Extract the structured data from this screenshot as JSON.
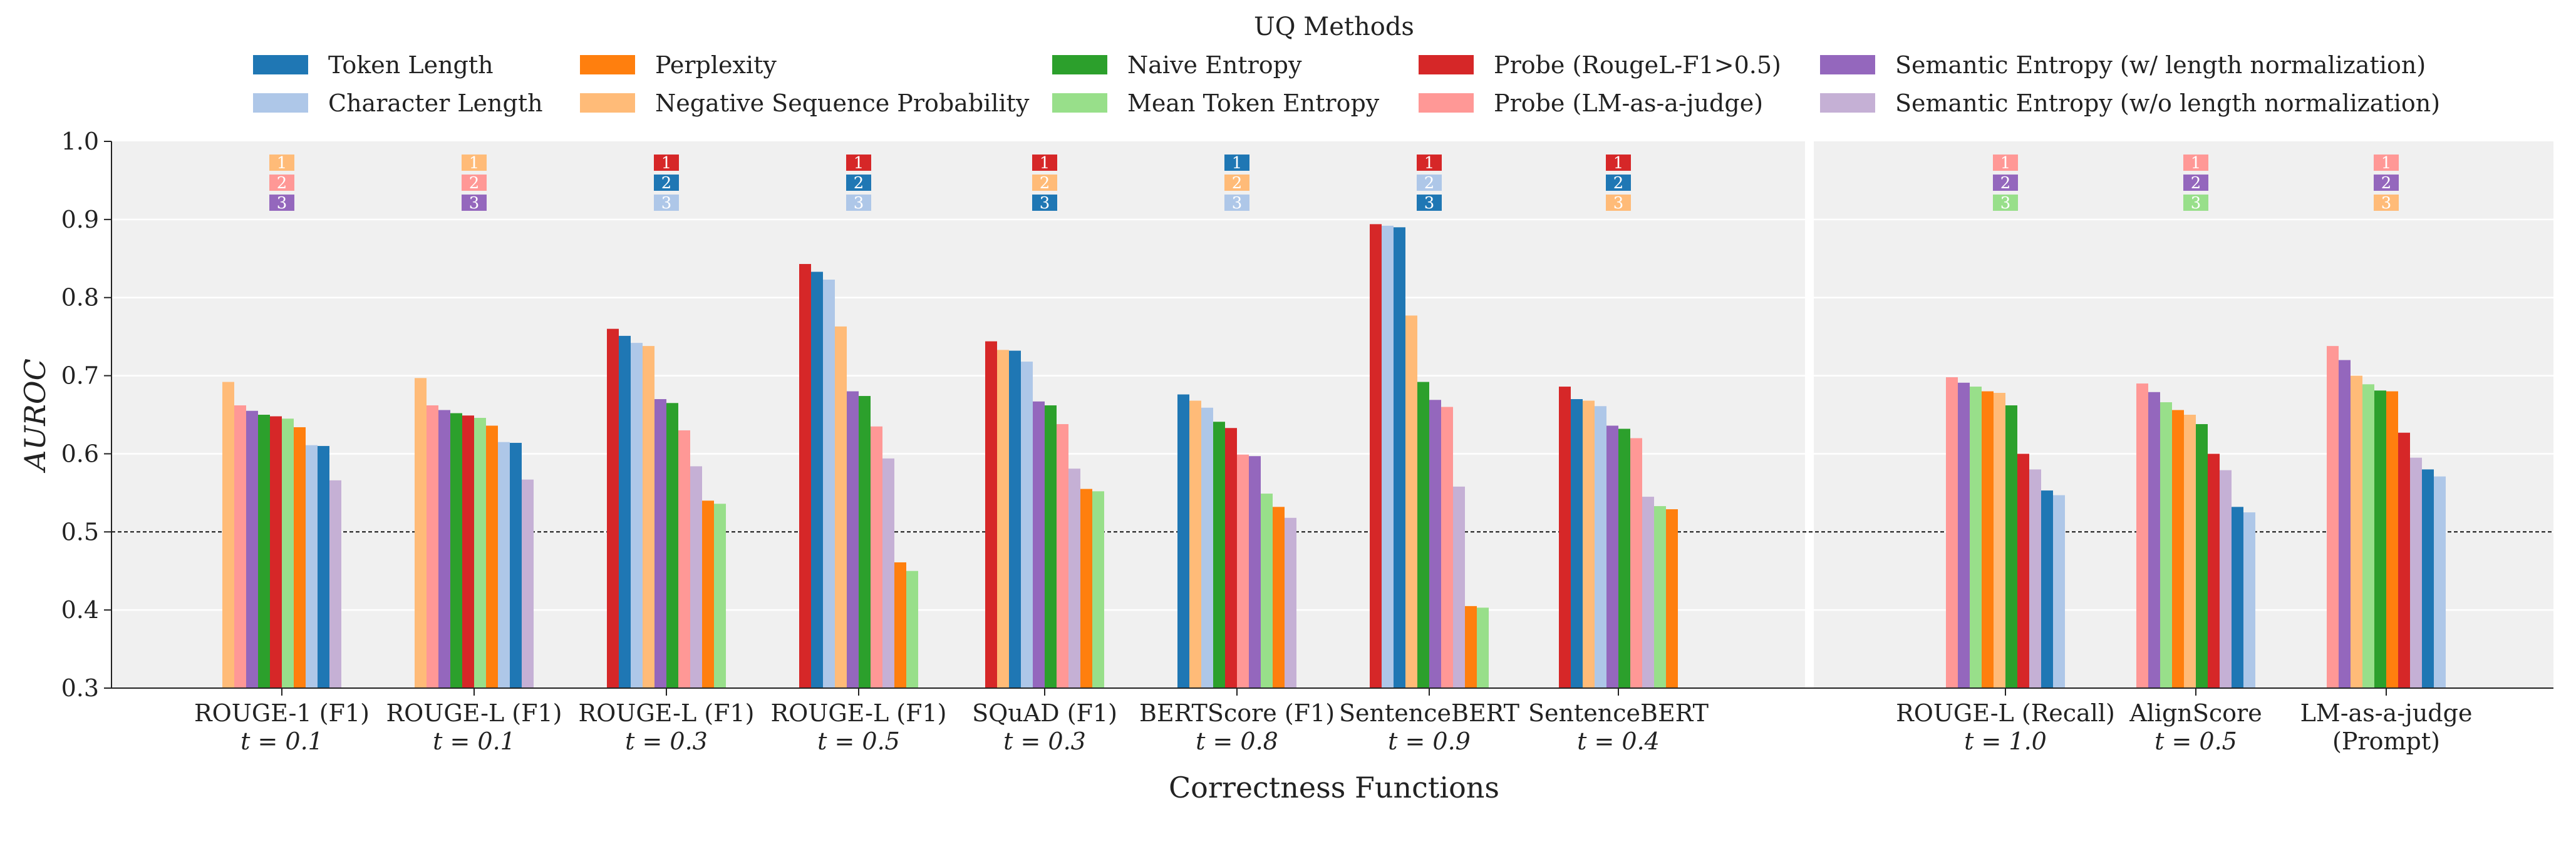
{
  "chart_data": {
    "type": "bar",
    "legend_title": "UQ Methods",
    "xlabel": "Correctness Functions",
    "ylabel": "AUROC",
    "ylim": [
      0.3,
      1.0
    ],
    "yticks": [
      "0.3",
      "0.4",
      "0.5",
      "0.6",
      "0.7",
      "0.8",
      "0.9",
      "1.0"
    ],
    "reference_line": 0.5,
    "grid": true,
    "legend_position": "top",
    "colors": {
      "Token Length": "#1f77b4",
      "Character Length": "#aec7e8",
      "Perplexity": "#ff7f0e",
      "Negative Sequence Probability": "#ffbb78",
      "Naive Entropy": "#2ca02c",
      "Mean Token Entropy": "#98df8a",
      "Probe (RougeL-F1>0.5)": "#d62728",
      "Probe (LM-as-a-judge)": "#ff9896",
      "Semantic Entropy (w/ length normalization)": "#9467bd",
      "Semantic Entropy (w/o length normalization)": "#c5b0d5"
    },
    "legend": [
      [
        "Token Length",
        "Character Length"
      ],
      [
        "Perplexity",
        "Negative Sequence Probability"
      ],
      [
        "Naive Entropy",
        "Mean Token Entropy"
      ],
      [
        "Probe (RougeL-F1>0.5)",
        "Probe (LM-as-a-judge)"
      ],
      [
        "Semantic Entropy (w/ length normalization)",
        "Semantic Entropy (w/o length normalization)"
      ]
    ],
    "groups": [
      {
        "line1": "ROUGE-1 (F1)",
        "line2": "t = 0.1",
        "ranks": [
          "Negative Sequence Probability",
          "Probe (LM-as-a-judge)",
          "Semantic Entropy (w/ length normalization)"
        ],
        "bars": [
          [
            "Negative Sequence Probability",
            0.692
          ],
          [
            "Probe (LM-as-a-judge)",
            0.662
          ],
          [
            "Semantic Entropy (w/ length normalization)",
            0.655
          ],
          [
            "Naive Entropy",
            0.65
          ],
          [
            "Probe (RougeL-F1>0.5)",
            0.648
          ],
          [
            "Mean Token Entropy",
            0.645
          ],
          [
            "Perplexity",
            0.634
          ],
          [
            "Character Length",
            0.611
          ],
          [
            "Token Length",
            0.61
          ],
          [
            "Semantic Entropy (w/o length normalization)",
            0.566
          ]
        ]
      },
      {
        "line1": "ROUGE-L (F1)",
        "line2": "t = 0.1",
        "ranks": [
          "Negative Sequence Probability",
          "Probe (LM-as-a-judge)",
          "Semantic Entropy (w/ length normalization)"
        ],
        "bars": [
          [
            "Negative Sequence Probability",
            0.697
          ],
          [
            "Probe (LM-as-a-judge)",
            0.662
          ],
          [
            "Semantic Entropy (w/ length normalization)",
            0.656
          ],
          [
            "Naive Entropy",
            0.652
          ],
          [
            "Probe (RougeL-F1>0.5)",
            0.649
          ],
          [
            "Mean Token Entropy",
            0.646
          ],
          [
            "Perplexity",
            0.636
          ],
          [
            "Character Length",
            0.615
          ],
          [
            "Token Length",
            0.614
          ],
          [
            "Semantic Entropy (w/o length normalization)",
            0.567
          ]
        ]
      },
      {
        "line1": "ROUGE-L (F1)",
        "line2": "t = 0.3",
        "ranks": [
          "Probe (RougeL-F1>0.5)",
          "Token Length",
          "Character Length"
        ],
        "bars": [
          [
            "Probe (RougeL-F1>0.5)",
            0.76
          ],
          [
            "Token Length",
            0.751
          ],
          [
            "Character Length",
            0.742
          ],
          [
            "Negative Sequence Probability",
            0.738
          ],
          [
            "Semantic Entropy (w/ length normalization)",
            0.67
          ],
          [
            "Naive Entropy",
            0.665
          ],
          [
            "Probe (LM-as-a-judge)",
            0.63
          ],
          [
            "Semantic Entropy (w/o length normalization)",
            0.584
          ],
          [
            "Perplexity",
            0.54
          ],
          [
            "Mean Token Entropy",
            0.536
          ]
        ]
      },
      {
        "line1": "ROUGE-L (F1)",
        "line2": "t = 0.5",
        "ranks": [
          "Probe (RougeL-F1>0.5)",
          "Token Length",
          "Character Length"
        ],
        "bars": [
          [
            "Probe (RougeL-F1>0.5)",
            0.843
          ],
          [
            "Token Length",
            0.833
          ],
          [
            "Character Length",
            0.823
          ],
          [
            "Negative Sequence Probability",
            0.763
          ],
          [
            "Semantic Entropy (w/ length normalization)",
            0.68
          ],
          [
            "Naive Entropy",
            0.674
          ],
          [
            "Probe (LM-as-a-judge)",
            0.635
          ],
          [
            "Semantic Entropy (w/o length normalization)",
            0.594
          ],
          [
            "Perplexity",
            0.461
          ],
          [
            "Mean Token Entropy",
            0.45
          ]
        ]
      },
      {
        "line1": "SQuAD (F1)",
        "line2": "t = 0.3",
        "ranks": [
          "Probe (RougeL-F1>0.5)",
          "Negative Sequence Probability",
          "Token Length"
        ],
        "bars": [
          [
            "Probe (RougeL-F1>0.5)",
            0.744
          ],
          [
            "Negative Sequence Probability",
            0.733
          ],
          [
            "Token Length",
            0.732
          ],
          [
            "Character Length",
            0.718
          ],
          [
            "Semantic Entropy (w/ length normalization)",
            0.667
          ],
          [
            "Naive Entropy",
            0.662
          ],
          [
            "Probe (LM-as-a-judge)",
            0.638
          ],
          [
            "Semantic Entropy (w/o length normalization)",
            0.581
          ],
          [
            "Perplexity",
            0.555
          ],
          [
            "Mean Token Entropy",
            0.552
          ]
        ]
      },
      {
        "line1": "BERTScore (F1)",
        "line2": "t = 0.8",
        "ranks": [
          "Token Length",
          "Negative Sequence Probability",
          "Character Length"
        ],
        "bars": [
          [
            "Token Length",
            0.676
          ],
          [
            "Negative Sequence Probability",
            0.668
          ],
          [
            "Character Length",
            0.659
          ],
          [
            "Naive Entropy",
            0.641
          ],
          [
            "Probe (RougeL-F1>0.5)",
            0.633
          ],
          [
            "Probe (LM-as-a-judge)",
            0.599
          ],
          [
            "Semantic Entropy (w/ length normalization)",
            0.597
          ],
          [
            "Mean Token Entropy",
            0.549
          ],
          [
            "Perplexity",
            0.532
          ],
          [
            "Semantic Entropy (w/o length normalization)",
            0.518
          ]
        ]
      },
      {
        "line1": "SentenceBERT",
        "line2": "t = 0.9",
        "ranks": [
          "Probe (RougeL-F1>0.5)",
          "Character Length",
          "Token Length"
        ],
        "bars": [
          [
            "Probe (RougeL-F1>0.5)",
            0.894
          ],
          [
            "Character Length",
            0.892
          ],
          [
            "Token Length",
            0.89
          ],
          [
            "Negative Sequence Probability",
            0.777
          ],
          [
            "Naive Entropy",
            0.692
          ],
          [
            "Semantic Entropy (w/ length normalization)",
            0.669
          ],
          [
            "Probe (LM-as-a-judge)",
            0.66
          ],
          [
            "Semantic Entropy (w/o length normalization)",
            0.558
          ],
          [
            "Perplexity",
            0.405
          ],
          [
            "Mean Token Entropy",
            0.403
          ]
        ]
      },
      {
        "line1": "SentenceBERT",
        "line2": "t = 0.4",
        "ranks": [
          "Probe (RougeL-F1>0.5)",
          "Token Length",
          "Negative Sequence Probability"
        ],
        "bars": [
          [
            "Probe (RougeL-F1>0.5)",
            0.686
          ],
          [
            "Token Length",
            0.67
          ],
          [
            "Negative Sequence Probability",
            0.668
          ],
          [
            "Character Length",
            0.661
          ],
          [
            "Semantic Entropy (w/ length normalization)",
            0.636
          ],
          [
            "Naive Entropy",
            0.632
          ],
          [
            "Probe (LM-as-a-judge)",
            0.62
          ],
          [
            "Semantic Entropy (w/o length normalization)",
            0.545
          ],
          [
            "Mean Token Entropy",
            0.533
          ],
          [
            "Perplexity",
            0.529
          ]
        ]
      },
      {
        "line1": "ROUGE-L (Recall)",
        "line2": "t = 1.0",
        "ranks": [
          "Probe (LM-as-a-judge)",
          "Semantic Entropy (w/ length normalization)",
          "Mean Token Entropy"
        ],
        "bars": [
          [
            "Probe (LM-as-a-judge)",
            0.698
          ],
          [
            "Semantic Entropy (w/ length normalization)",
            0.691
          ],
          [
            "Mean Token Entropy",
            0.686
          ],
          [
            "Perplexity",
            0.68
          ],
          [
            "Negative Sequence Probability",
            0.678
          ],
          [
            "Naive Entropy",
            0.662
          ],
          [
            "Probe (RougeL-F1>0.5)",
            0.6
          ],
          [
            "Semantic Entropy (w/o length normalization)",
            0.58
          ],
          [
            "Token Length",
            0.553
          ],
          [
            "Character Length",
            0.547
          ]
        ]
      },
      {
        "line1": "AlignScore",
        "line2": "t = 0.5",
        "ranks": [
          "Probe (LM-as-a-judge)",
          "Semantic Entropy (w/ length normalization)",
          "Mean Token Entropy"
        ],
        "bars": [
          [
            "Probe (LM-as-a-judge)",
            0.69
          ],
          [
            "Semantic Entropy (w/ length normalization)",
            0.679
          ],
          [
            "Mean Token Entropy",
            0.666
          ],
          [
            "Perplexity",
            0.656
          ],
          [
            "Negative Sequence Probability",
            0.65
          ],
          [
            "Naive Entropy",
            0.638
          ],
          [
            "Probe (RougeL-F1>0.5)",
            0.6
          ],
          [
            "Semantic Entropy (w/o length normalization)",
            0.579
          ],
          [
            "Token Length",
            0.532
          ],
          [
            "Character Length",
            0.525
          ]
        ]
      },
      {
        "line1": "LM-as-a-judge",
        "line2": "(Prompt)",
        "ranks": [
          "Probe (LM-as-a-judge)",
          "Semantic Entropy (w/ length normalization)",
          "Negative Sequence Probability"
        ],
        "bars": [
          [
            "Probe (LM-as-a-judge)",
            0.738
          ],
          [
            "Semantic Entropy (w/ length normalization)",
            0.72
          ],
          [
            "Negative Sequence Probability",
            0.7
          ],
          [
            "Mean Token Entropy",
            0.689
          ],
          [
            "Naive Entropy",
            0.681
          ],
          [
            "Perplexity",
            0.68
          ],
          [
            "Probe (RougeL-F1>0.5)",
            0.627
          ],
          [
            "Semantic Entropy (w/o length normalization)",
            0.595
          ],
          [
            "Token Length",
            0.58
          ],
          [
            "Character Length",
            0.571
          ]
        ]
      }
    ],
    "rank_labels": [
      "1",
      "2",
      "3"
    ]
  }
}
